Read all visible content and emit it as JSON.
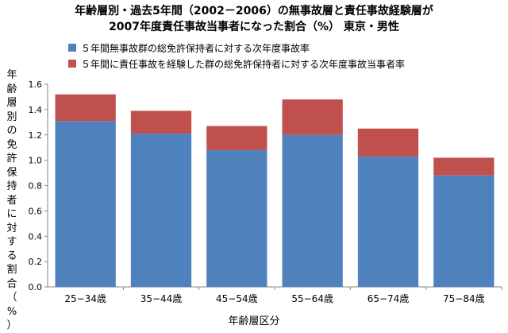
{
  "chart_data": {
    "type": "bar",
    "stacked": true,
    "title_line1": "年齢層別・過去5年間（2002－2006）の無事故層と責任事故経験層が",
    "title_line2": "2007年度責任事故当事者になった割合（%） 東京・男性",
    "xlabel": "年齢層区分",
    "ylabel": "年齢層別の免許保持者に対する割合（%）",
    "ylim": [
      0,
      1.6
    ],
    "yticks": [
      "0.0",
      "0.2",
      "0.4",
      "0.6",
      "0.8",
      "1.0",
      "1.2",
      "1.4",
      "1.6"
    ],
    "categories": [
      "25−34歳",
      "35−44歳",
      "45−54歳",
      "55−64歳",
      "65−74歳",
      "75−84歳"
    ],
    "series": [
      {
        "name": "５年間無事故群の総免許保持者に対する次年度事故率",
        "color": "#4f81bd",
        "values": [
          1.31,
          1.21,
          1.08,
          1.2,
          1.03,
          0.88
        ]
      },
      {
        "name": "５年間に責任事故を経験した群の総免許保持者に対する次年度事故当事者率",
        "color": "#c0504d",
        "values": [
          0.21,
          0.18,
          0.19,
          0.28,
          0.22,
          0.14
        ]
      }
    ],
    "legend_position": "top-left",
    "grid": false
  }
}
